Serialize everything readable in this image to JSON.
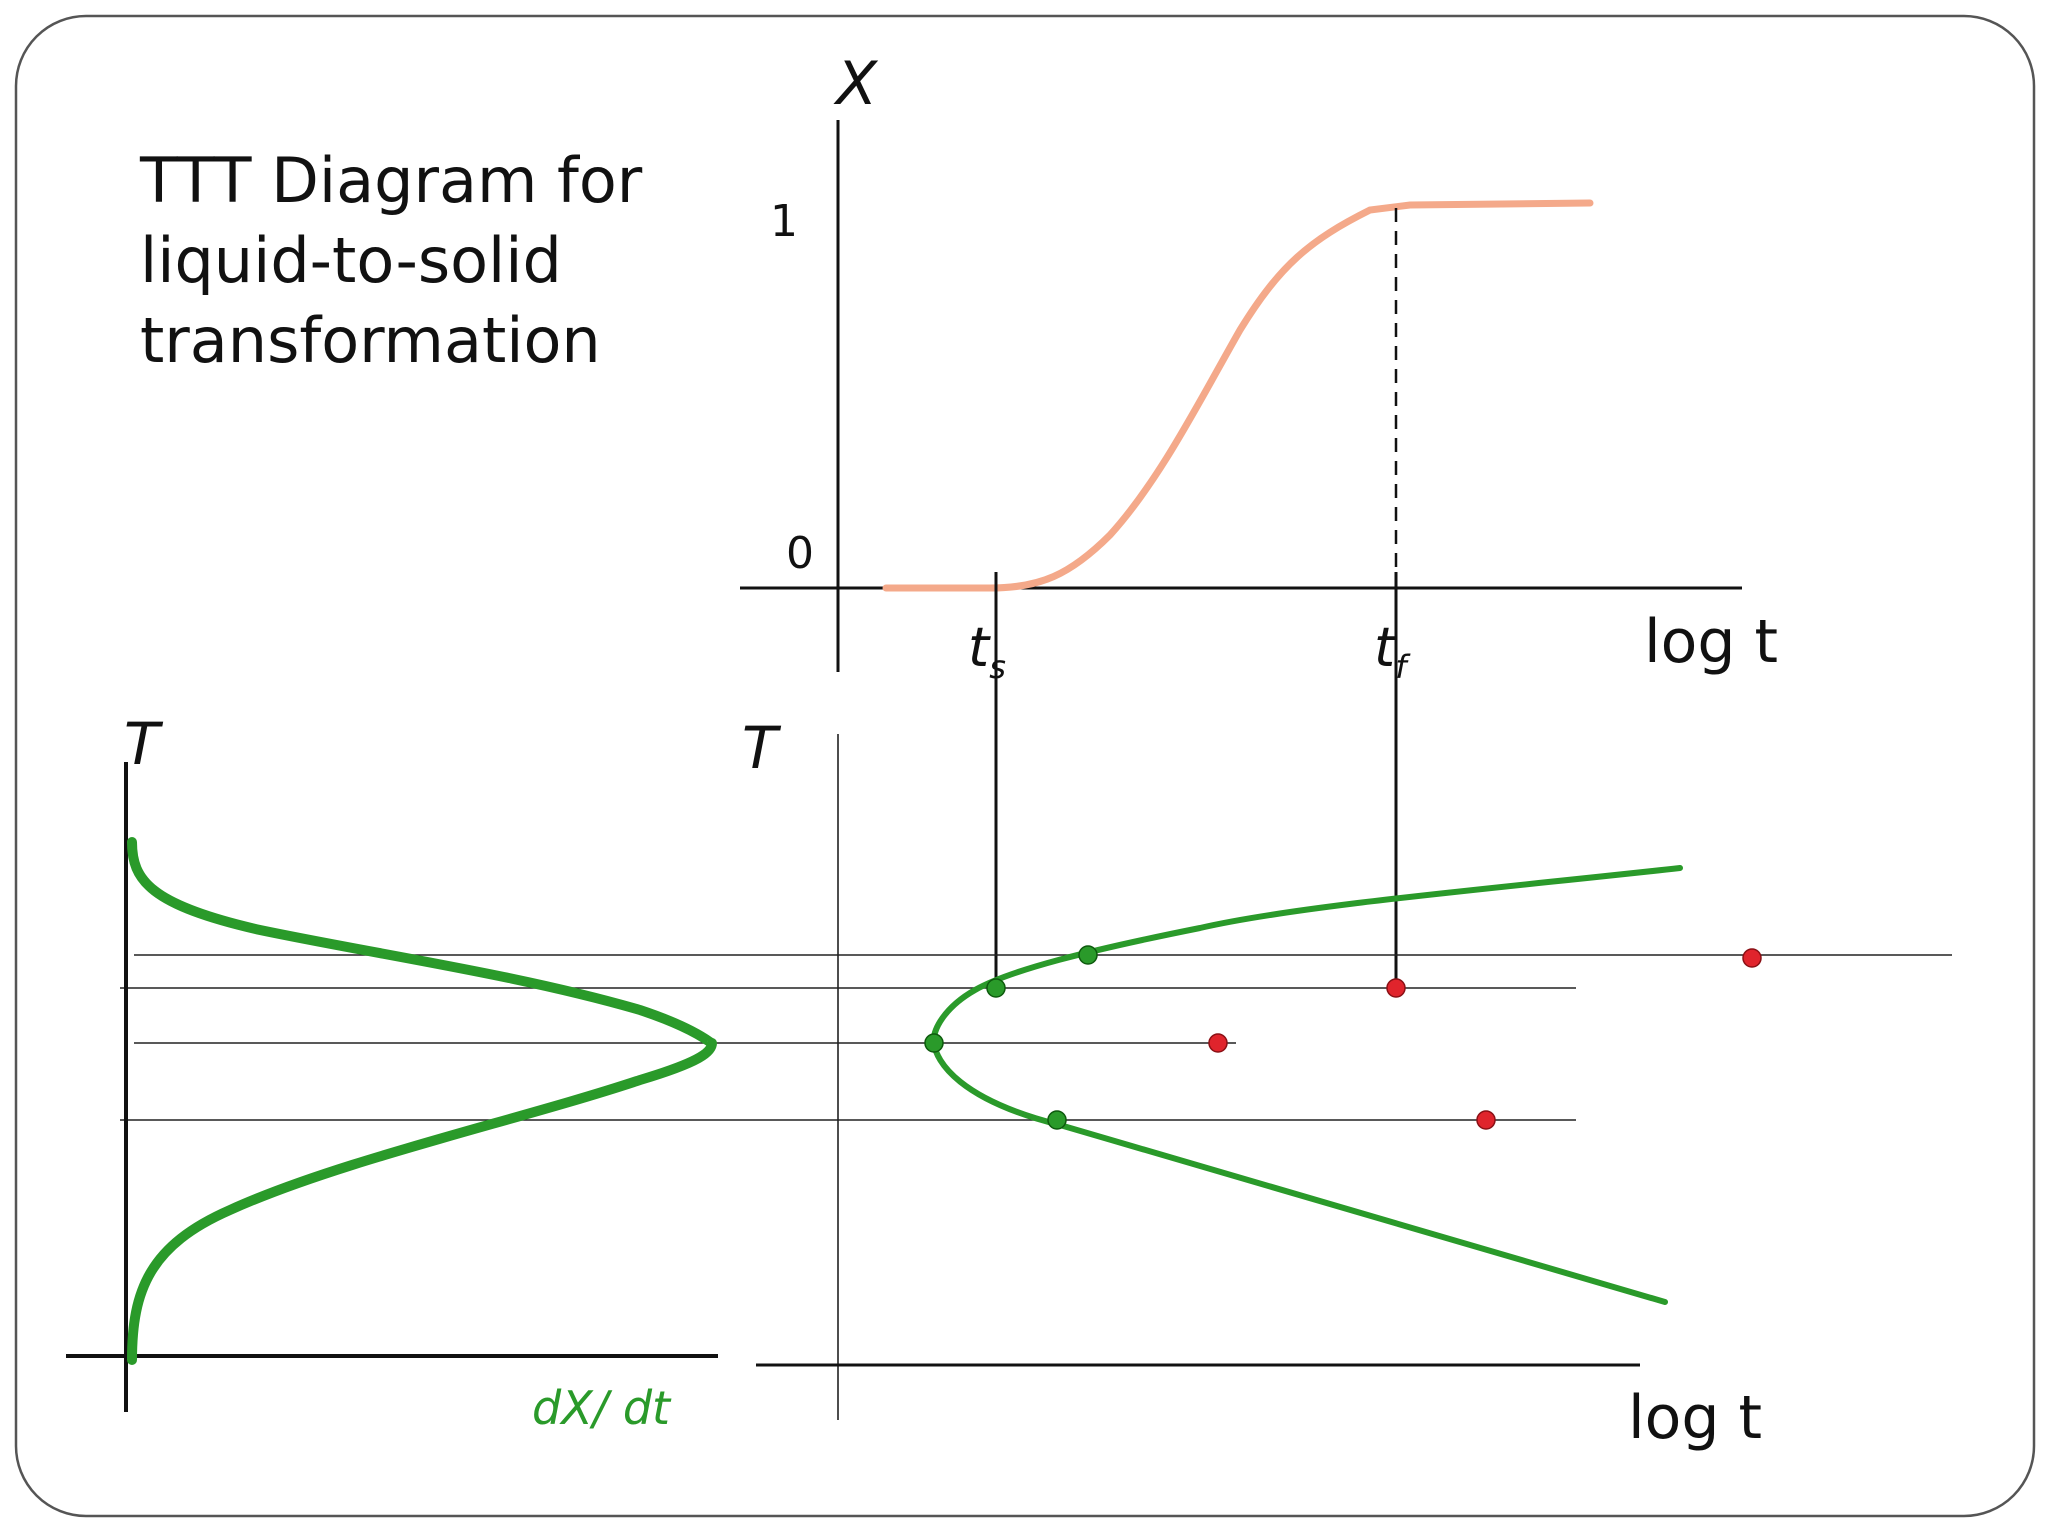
{
  "title_lines": [
    "TTT Diagram for",
    "liquid-to-solid",
    "transformation"
  ],
  "top_plot": {
    "y_axis_label": "X",
    "y_tick_top": "1",
    "y_tick_bottom": "0",
    "x_axis_label": "log t",
    "ts_label_main": "t",
    "ts_label_sub": "s",
    "tf_label_main": "t",
    "tf_label_sub": "f"
  },
  "left_plot": {
    "y_axis_label": "T",
    "x_axis_label": "dX/ dt"
  },
  "ttt_plot": {
    "y_axis_label": "T",
    "x_axis_label": "log t"
  },
  "colors": {
    "s_curve": "#f4a98a",
    "green": "#2a9a2a",
    "red_dot": "#e0242c",
    "axis": "#111111",
    "frame": "#444444"
  }
}
